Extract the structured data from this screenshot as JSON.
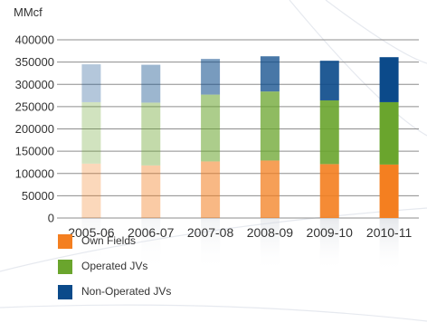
{
  "colors": {
    "own_fields": "#f47f20",
    "operated_jvs": "#6aa52d",
    "non_operated_jvs": "#0b4a8a"
  },
  "chart_data": {
    "type": "bar",
    "stacked": true,
    "ylabel": "MMcf",
    "ylim": [
      0,
      400000
    ],
    "yticks": [
      "400000",
      "350000",
      "300000",
      "250000",
      "200000",
      "150000",
      "100000",
      "50000",
      "0"
    ],
    "grid": true,
    "legend_position": "bottom-left",
    "categories": [
      "2005-06",
      "2006-07",
      "2007-08",
      "2008-09",
      "2009-10",
      "2010-11"
    ],
    "category_opacity": [
      0.3,
      0.4,
      0.55,
      0.75,
      0.9,
      1.0
    ],
    "series": [
      {
        "name": "Own Fields",
        "color": "#f47f20",
        "values": [
          122000,
          118000,
          127000,
          129000,
          121000,
          120000
        ]
      },
      {
        "name": "Operated JVs",
        "color": "#6aa52d",
        "values": [
          138000,
          141000,
          150000,
          155000,
          143000,
          140000
        ]
      },
      {
        "name": "Non-Operated JVs",
        "color": "#0b4a8a",
        "values": [
          85000,
          85000,
          80000,
          79000,
          89000,
          101000
        ]
      }
    ]
  }
}
